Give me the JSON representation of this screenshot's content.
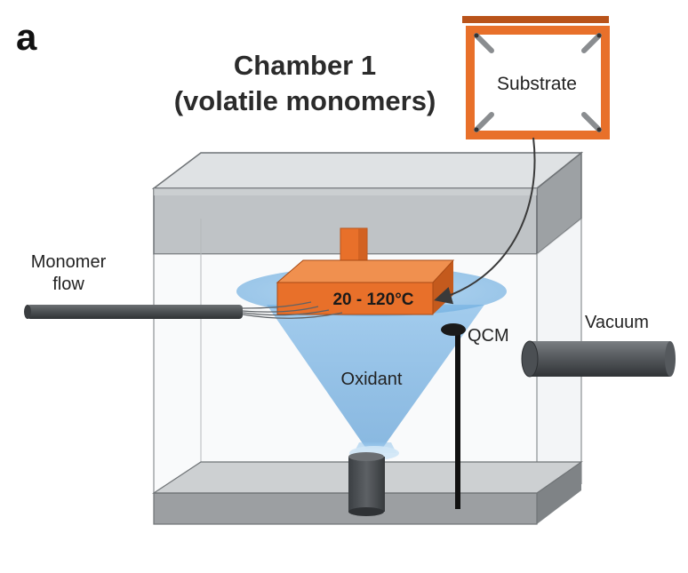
{
  "panel_label": "a",
  "title_line1": "Chamber 1",
  "title_line2": "(volatile monomers)",
  "labels": {
    "substrate": "Substrate",
    "monomer_line1": "Monomer",
    "monomer_line2": "flow",
    "temperature": "20 - 120°C",
    "qcm": "QCM",
    "vacuum": "Vacuum",
    "oxidant": "Oxidant"
  },
  "colors": {
    "heater_orange": "#E8702A",
    "substrate_frame": "#E8702A",
    "oxidant_cone": "#6FA8DC",
    "chamber_plate": "#BFC3C6",
    "pipe": "#4A4D50",
    "glass_wall": "#F4F6F8"
  }
}
